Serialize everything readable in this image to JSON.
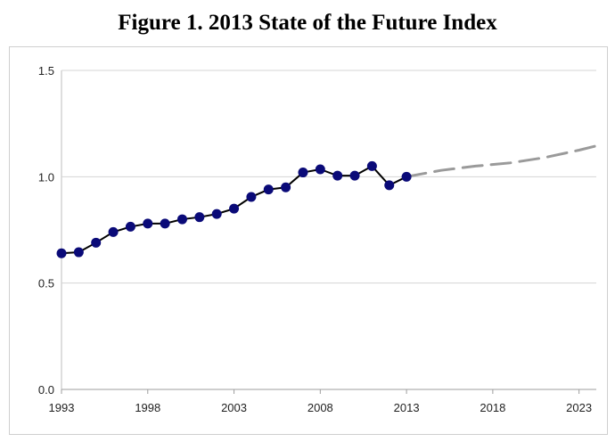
{
  "title": "Figure 1. 2013 State of the Future Index",
  "chart_data": {
    "type": "line",
    "title": "Figure 1. 2013 State of the Future Index",
    "xlabel": "",
    "ylabel": "",
    "xlim": [
      1993,
      2024
    ],
    "ylim": [
      0.0,
      1.5
    ],
    "y_ticks": [
      "0.0",
      "0.5",
      "1.0",
      "1.5"
    ],
    "x_ticks": [
      "1993",
      "1998",
      "2003",
      "2008",
      "2013",
      "2018",
      "2023"
    ],
    "grid": "horizontal",
    "legend": "none",
    "series": [
      {
        "type": "historical",
        "color": "#0a0a78",
        "line_color": "#000000",
        "marker": "circle",
        "x": [
          1993,
          1994,
          1995,
          1996,
          1997,
          1998,
          1999,
          2000,
          2001,
          2002,
          2003,
          2004,
          2005,
          2006,
          2007,
          2008,
          2009,
          2010,
          2011,
          2012,
          2013
        ],
        "y": [
          0.64,
          0.645,
          0.69,
          0.74,
          0.765,
          0.78,
          0.78,
          0.8,
          0.81,
          0.825,
          0.85,
          0.905,
          0.94,
          0.95,
          1.02,
          1.035,
          1.005,
          1.005,
          1.05,
          0.96,
          1.0
        ]
      },
      {
        "type": "forecast",
        "color": "#9a9a9a",
        "dashed": true,
        "x": [
          2013,
          2015,
          2017,
          2019,
          2021,
          2023,
          2024
        ],
        "y": [
          1.0,
          1.03,
          1.05,
          1.065,
          1.09,
          1.125,
          1.145
        ]
      }
    ]
  }
}
